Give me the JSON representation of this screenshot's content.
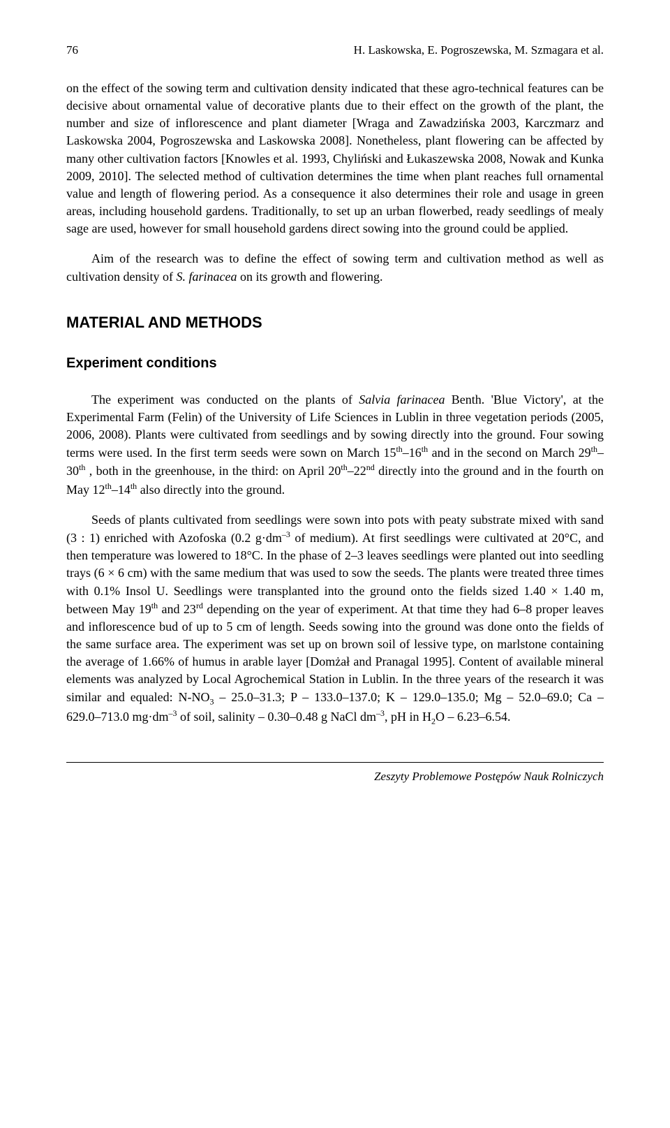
{
  "header": {
    "page_number": "76",
    "authors": "H. Laskowska, E. Pogroszewska, M. Szmagara et al."
  },
  "paragraphs": {
    "p1_part1": "on the effect of the sowing term and cultivation density indicated that these agro-technical features can be decisive about ornamental value of decorative plants due to their effect on the growth of the plant, the number and size of inflorescence and plant diameter [Wraga and Zawadzińska 2003, Karczmarz and Laskowska 2004, Pogroszewska and Laskowska 2008]. Nonetheless, plant flowering can be affected by many other cultivation factors [Knowles et al. 1993, Chyliński and Łukaszewska 2008, Nowak and Kunka 2009, 2010]. The selected method of cultivation determines the time when plant reaches full ornamental value and length of flowering period. As a consequence it also determines their role and usage in green areas, including household gardens. Traditionally, to set up an urban flowerbed, ready seedlings of mealy sage are used, however for small household gardens direct sowing into the ground could be applied.",
    "p2_part1": "Aim of the research was to define the effect of sowing term and cultivation method as well as cultivation density of ",
    "p2_italic": "S. farinacea",
    "p2_part2": " on its growth and flowering.",
    "p3_part1": "The experiment was conducted on the plants of ",
    "p3_italic": "Salvia farinacea",
    "p3_part2": " Benth. 'Blue Victory', at the Experimental Farm (Felin) of the University of Life Sciences in Lublin in three vegetation periods (2005, 2006, 2008). Plants were cultivated from seedlings and by sowing directly into the ground. Four sowing terms were used. In the first term seeds were sown on March 15",
    "p3_sup1": "th",
    "p3_part3": "–16",
    "p3_sup2": "th",
    "p3_part4": " and in the second on March 29",
    "p3_sup3": "th",
    "p3_part5": "–30",
    "p3_sup4": "th",
    "p3_part6": " , both in the greenhouse, in the third: on April 20",
    "p3_sup5": "th",
    "p3_part7": "–22",
    "p3_sup6": "nd",
    "p3_part8": " directly into the ground and in the fourth on May 12",
    "p3_sup7": "th",
    "p3_part9": "–14",
    "p3_sup8": "th",
    "p3_part10": " also directly into the ground.",
    "p4_part1": "Seeds of plants cultivated from seedlings were sown into pots with peaty substrate mixed with sand (3 : 1) enriched with Azofoska (0.2 g·dm",
    "p4_sup1": "–3",
    "p4_part2": " of medium). At first seedlings were cultivated at 20°C, and then temperature was lowered to 18°C. In the phase of 2–3 leaves seedlings were planted out into seedling trays (6 × 6 cm) with the same medium that was used to sow the seeds. The plants were treated three times with 0.1% Insol U. Seedlings were transplanted into the ground onto the fields sized 1.40 × 1.40 m, between May 19",
    "p4_sup2": "th",
    "p4_part3": " and 23",
    "p4_sup3": "rd",
    "p4_part4": " depending on the year of experiment. At that time they had 6–8 proper leaves and inflorescence bud of up to 5 cm of length. Seeds sowing into the ground was done onto the fields of the same surface area. The experiment was set up on brown soil of lessive type, on marlstone containing the average of 1.66% of humus in arable layer [Domżał and Pranagal 1995]. Content of available mineral elements was analyzed by Local Agrochemical Station in Lublin. In the three years of the research it was similar and equaled: N-NO",
    "p4_sub1": "3",
    "p4_part5": " – 25.0–31.3; P – 133.0–137.0; K – 129.0–135.0; Mg – 52.0–69.0; Ca – 629.0–713.0 mg·dm",
    "p4_sup4": "–3",
    "p4_part6": " of soil, salinity – 0.30–0.48 g NaCl dm",
    "p4_sup5": "–3",
    "p4_part7": ", pH in H",
    "p4_sub2": "2",
    "p4_part8": "O – 6.23–6.54."
  },
  "headings": {
    "section": "MATERIAL AND METHODS",
    "subsection": "Experiment conditions"
  },
  "footer": {
    "text": "Zeszyty Problemowe Postępów Nauk Rolniczych"
  }
}
